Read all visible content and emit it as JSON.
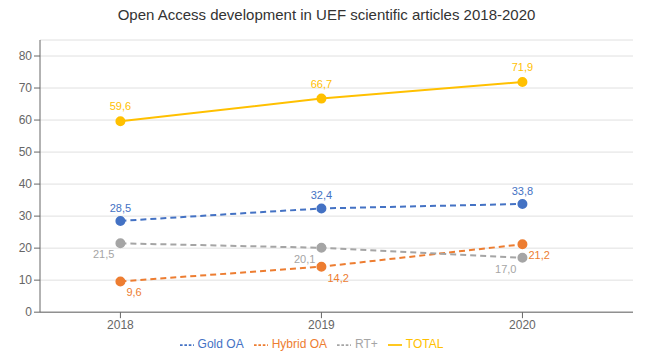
{
  "chart_data": {
    "type": "line",
    "title": "Open Access development in UEF scientific articles 2018-2020",
    "x": [
      2018,
      2019,
      2020
    ],
    "xlim": [
      2017.6,
      2020.55
    ],
    "xticks": [
      2018,
      2019,
      2020
    ],
    "ylim": [
      0,
      85
    ],
    "yticks": [
      0,
      10,
      20,
      30,
      40,
      50,
      60,
      70,
      80
    ],
    "grid": true,
    "legend": "bottom",
    "data_labels": true,
    "series": [
      {
        "name": "Gold OA",
        "color": "#4472C4",
        "values": [
          28.5,
          32.4,
          33.8
        ],
        "value_labels": [
          "28,5",
          "32,4",
          "33,8"
        ],
        "marker": "circle",
        "line_style": "dashed"
      },
      {
        "name": "Hybrid OA",
        "color": "#ED7D31",
        "values": [
          9.6,
          14.2,
          21.2
        ],
        "value_labels": [
          "9,6",
          "14,2",
          "21,2"
        ],
        "marker": "circle",
        "line_style": "dashed"
      },
      {
        "name": "RT+",
        "color": "#A5A5A5",
        "values": [
          21.5,
          20.1,
          17.0
        ],
        "value_labels": [
          "21,5",
          "20,1",
          "17,0"
        ],
        "marker": "circle",
        "line_style": "dashed"
      },
      {
        "name": "TOTAL",
        "color": "#FFC000",
        "values": [
          59.6,
          66.7,
          71.9
        ],
        "value_labels": [
          "59,6",
          "66,7",
          "71,9"
        ],
        "marker": "circle",
        "line_style": "solid"
      }
    ]
  }
}
